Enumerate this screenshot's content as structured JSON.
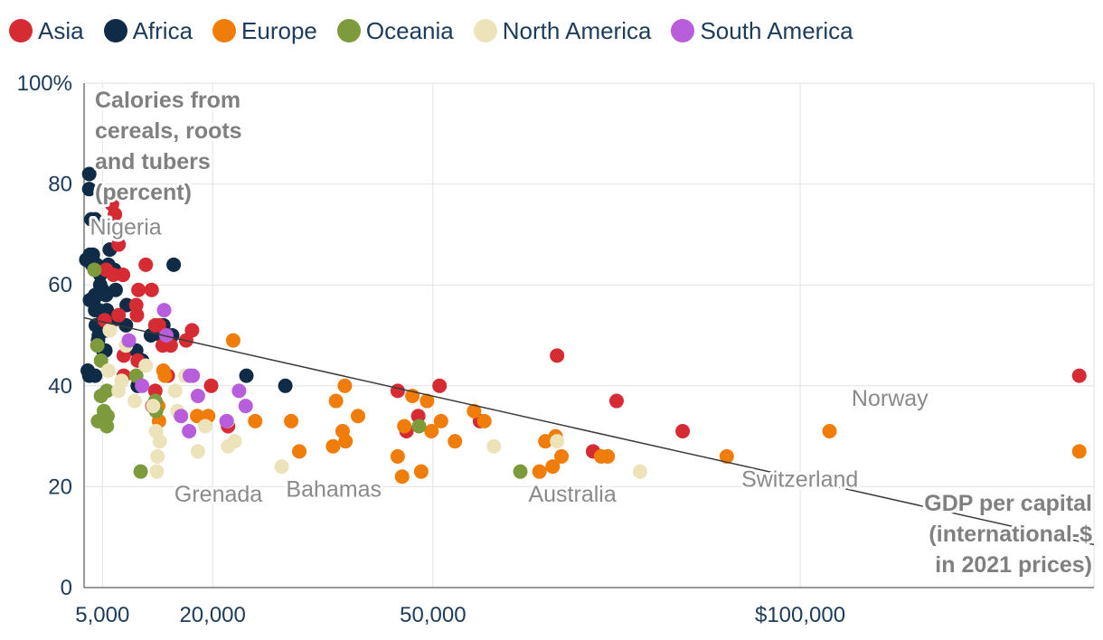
{
  "chart_data": {
    "type": "scatter",
    "title": "",
    "ylabel_lines": [
      "Calories from",
      "cereals, roots",
      "and tubers",
      "(percent)"
    ],
    "xlabel_lines": [
      "GDP per capital",
      "(international-$",
      "in 2021 prices)"
    ],
    "x_tick_labels": [
      {
        "value": 5000,
        "label": "5,000"
      },
      {
        "value": 20000,
        "label": "20,000"
      },
      {
        "value": 50000,
        "label": "50,000"
      },
      {
        "value": 100000,
        "label": "$100,000"
      }
    ],
    "y_tick_labels": [
      {
        "value": 0,
        "label": "0"
      },
      {
        "value": 20,
        "label": "20"
      },
      {
        "value": 40,
        "label": "40"
      },
      {
        "value": 60,
        "label": "60"
      },
      {
        "value": 80,
        "label": "80"
      },
      {
        "value": 100,
        "label": "100%"
      }
    ],
    "x_gridlines": [
      5000,
      20000,
      50000,
      100000,
      140000
    ],
    "xlim": [
      2500,
      140000
    ],
    "ylim": [
      0,
      100
    ],
    "trend_line": {
      "x": [
        2500,
        140000
      ],
      "y": [
        53.5,
        8.5
      ]
    },
    "legend": [
      {
        "name": "Asia",
        "color": "#d62b33"
      },
      {
        "name": "Africa",
        "color": "#0f2b46"
      },
      {
        "name": "Europe",
        "color": "#f07d0a"
      },
      {
        "name": "Oceania",
        "color": "#7d9b3c"
      },
      {
        "name": "North America",
        "color": "#ece3bb"
      },
      {
        "name": "South America",
        "color": "#b85ddb"
      }
    ],
    "annotations": [
      {
        "text": "Nigeria",
        "x": 3300,
        "y": 70
      },
      {
        "text": "Grenada",
        "x": 14800,
        "y": 17
      },
      {
        "text": "Bahamas",
        "x": 30000,
        "y": 18
      },
      {
        "text": "Australia",
        "x": 63000,
        "y": 17
      },
      {
        "text": "Switzerland",
        "x": 92000,
        "y": 20
      },
      {
        "text": "Norway",
        "x": 107000,
        "y": 36
      }
    ],
    "series": [
      {
        "name": "Africa",
        "points": [
          [
            3200,
            82
          ],
          [
            3200,
            79
          ],
          [
            3500,
            73
          ],
          [
            4000,
            73
          ],
          [
            2800,
            65
          ],
          [
            3300,
            66
          ],
          [
            3700,
            66
          ],
          [
            3600,
            64
          ],
          [
            4200,
            64
          ],
          [
            5200,
            63
          ],
          [
            4700,
            62
          ],
          [
            5800,
            64
          ],
          [
            6000,
            67
          ],
          [
            6600,
            63
          ],
          [
            3300,
            57
          ],
          [
            3800,
            57
          ],
          [
            4000,
            58
          ],
          [
            4300,
            58
          ],
          [
            4700,
            60
          ],
          [
            5000,
            59
          ],
          [
            5500,
            58
          ],
          [
            6800,
            59
          ],
          [
            8300,
            56
          ],
          [
            4000,
            55
          ],
          [
            4500,
            55
          ],
          [
            5600,
            55
          ],
          [
            5100,
            53
          ],
          [
            6400,
            53
          ],
          [
            4100,
            52
          ],
          [
            5500,
            51
          ],
          [
            8200,
            52
          ],
          [
            11600,
            50
          ],
          [
            13000,
            50
          ],
          [
            14500,
            50
          ],
          [
            13300,
            52
          ],
          [
            3000,
            43
          ],
          [
            3200,
            42
          ],
          [
            4000,
            42
          ],
          [
            5400,
            47
          ],
          [
            9600,
            47
          ],
          [
            10400,
            45
          ],
          [
            9800,
            40
          ],
          [
            14700,
            64
          ],
          [
            24600,
            42
          ],
          [
            29900,
            40
          ],
          [
            4500,
            50
          ],
          [
            5100,
            47
          ],
          [
            4400,
            49
          ]
        ]
      },
      {
        "name": "Asia",
        "points": [
          [
            6300,
            76
          ],
          [
            6700,
            74
          ],
          [
            7200,
            68
          ],
          [
            5500,
            63
          ],
          [
            5500,
            63
          ],
          [
            6500,
            62
          ],
          [
            7800,
            62
          ],
          [
            10900,
            64
          ],
          [
            9900,
            59
          ],
          [
            11700,
            59
          ],
          [
            9600,
            56
          ],
          [
            9700,
            54
          ],
          [
            7200,
            54
          ],
          [
            5300,
            53
          ],
          [
            12700,
            52
          ],
          [
            12200,
            52
          ],
          [
            16400,
            49
          ],
          [
            17200,
            51
          ],
          [
            7900,
            46
          ],
          [
            9800,
            45
          ],
          [
            14300,
            48
          ],
          [
            13200,
            48
          ],
          [
            13900,
            42
          ],
          [
            12200,
            39
          ],
          [
            11800,
            36
          ],
          [
            7900,
            42
          ],
          [
            19800,
            40
          ],
          [
            22100,
            32
          ],
          [
            45200,
            39
          ],
          [
            46400,
            31
          ],
          [
            48000,
            34
          ],
          [
            50900,
            40
          ],
          [
            56400,
            33
          ],
          [
            66900,
            46
          ],
          [
            75000,
            37
          ],
          [
            71800,
            27
          ],
          [
            84000,
            31
          ],
          [
            138000,
            42
          ]
        ]
      },
      {
        "name": "Europe",
        "points": [
          [
            22800,
            49
          ],
          [
            13300,
            43
          ],
          [
            13500,
            42
          ],
          [
            12600,
            36
          ],
          [
            12700,
            33
          ],
          [
            17900,
            34
          ],
          [
            19400,
            34
          ],
          [
            25800,
            33
          ],
          [
            30700,
            33
          ],
          [
            31800,
            27
          ],
          [
            36400,
            28
          ],
          [
            36800,
            37
          ],
          [
            38100,
            29
          ],
          [
            37700,
            31
          ],
          [
            38000,
            40
          ],
          [
            39800,
            34
          ],
          [
            45800,
            22
          ],
          [
            45200,
            26
          ],
          [
            46100,
            32
          ],
          [
            47200,
            38
          ],
          [
            48400,
            23
          ],
          [
            49200,
            37
          ],
          [
            49800,
            31
          ],
          [
            51100,
            33
          ],
          [
            53000,
            29
          ],
          [
            55600,
            35
          ],
          [
            57000,
            33
          ],
          [
            64500,
            23
          ],
          [
            65300,
            29
          ],
          [
            66300,
            24
          ],
          [
            66700,
            30
          ],
          [
            67500,
            26
          ],
          [
            72900,
            26
          ],
          [
            73800,
            26
          ],
          [
            90000,
            26
          ],
          [
            104000,
            31
          ],
          [
            138000,
            27
          ]
        ]
      },
      {
        "name": "Oceania",
        "points": [
          [
            3900,
            63
          ],
          [
            4300,
            48
          ],
          [
            4800,
            45
          ],
          [
            4800,
            38
          ],
          [
            5600,
            39
          ],
          [
            5600,
            32
          ],
          [
            5700,
            34
          ],
          [
            4400,
            33
          ],
          [
            5200,
            35
          ],
          [
            9600,
            42
          ],
          [
            10200,
            23
          ],
          [
            12200,
            37
          ],
          [
            12300,
            35
          ],
          [
            48100,
            32
          ],
          [
            61900,
            23
          ]
        ]
      },
      {
        "name": "North America",
        "points": [
          [
            6000,
            51
          ],
          [
            8200,
            48
          ],
          [
            10900,
            44
          ],
          [
            5800,
            43
          ],
          [
            7600,
            41
          ],
          [
            7200,
            39
          ],
          [
            9400,
            37
          ],
          [
            11900,
            36
          ],
          [
            12300,
            31
          ],
          [
            12800,
            29
          ],
          [
            12500,
            26
          ],
          [
            12400,
            23
          ],
          [
            14900,
            39
          ],
          [
            15200,
            35
          ],
          [
            16300,
            42
          ],
          [
            18000,
            27
          ],
          [
            19000,
            32
          ],
          [
            22000,
            33
          ],
          [
            22100,
            28
          ],
          [
            23000,
            29
          ],
          [
            29400,
            24
          ],
          [
            58300,
            28
          ],
          [
            66900,
            29
          ],
          [
            78200,
            23
          ]
        ]
      },
      {
        "name": "South America",
        "points": [
          [
            8600,
            49
          ],
          [
            10400,
            40
          ],
          [
            13400,
            55
          ],
          [
            13700,
            50
          ],
          [
            15700,
            34
          ],
          [
            16800,
            31
          ],
          [
            16900,
            42
          ],
          [
            17300,
            42
          ],
          [
            18000,
            38
          ],
          [
            21900,
            33
          ],
          [
            23600,
            39
          ],
          [
            24500,
            36
          ]
        ]
      }
    ]
  }
}
